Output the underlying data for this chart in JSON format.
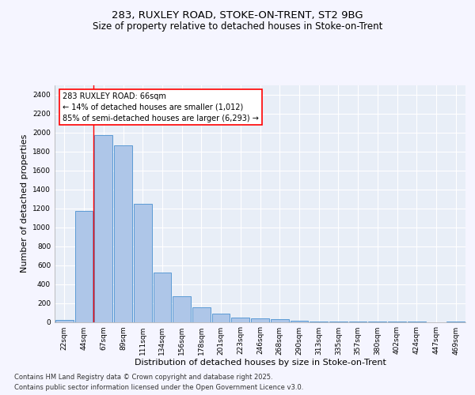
{
  "title_line1": "283, RUXLEY ROAD, STOKE-ON-TRENT, ST2 9BG",
  "title_line2": "Size of property relative to detached houses in Stoke-on-Trent",
  "xlabel": "Distribution of detached houses by size in Stoke-on-Trent",
  "ylabel": "Number of detached properties",
  "categories": [
    "22sqm",
    "44sqm",
    "67sqm",
    "89sqm",
    "111sqm",
    "134sqm",
    "156sqm",
    "178sqm",
    "201sqm",
    "223sqm",
    "246sqm",
    "268sqm",
    "290sqm",
    "313sqm",
    "335sqm",
    "357sqm",
    "380sqm",
    "402sqm",
    "424sqm",
    "447sqm",
    "469sqm"
  ],
  "values": [
    25,
    1170,
    1970,
    1860,
    1245,
    520,
    275,
    155,
    85,
    47,
    37,
    30,
    15,
    8,
    4,
    3,
    2,
    1,
    1,
    0,
    1
  ],
  "bar_color": "#aec6e8",
  "bar_edge_color": "#5b9bd5",
  "vline_color": "red",
  "annotation_text": "283 RUXLEY ROAD: 66sqm\n← 14% of detached houses are smaller (1,012)\n85% of semi-detached houses are larger (6,293) →",
  "ylim": [
    0,
    2500
  ],
  "yticks": [
    0,
    200,
    400,
    600,
    800,
    1000,
    1200,
    1400,
    1600,
    1800,
    2000,
    2200,
    2400
  ],
  "bg_color": "#e8eef7",
  "grid_color": "#ffffff",
  "fig_bg_color": "#f5f5ff",
  "footer_line1": "Contains HM Land Registry data © Crown copyright and database right 2025.",
  "footer_line2": "Contains public sector information licensed under the Open Government Licence v3.0.",
  "title_fontsize": 9.5,
  "subtitle_fontsize": 8.5,
  "axis_label_fontsize": 8,
  "tick_fontsize": 6.5,
  "annotation_fontsize": 7,
  "footer_fontsize": 6
}
